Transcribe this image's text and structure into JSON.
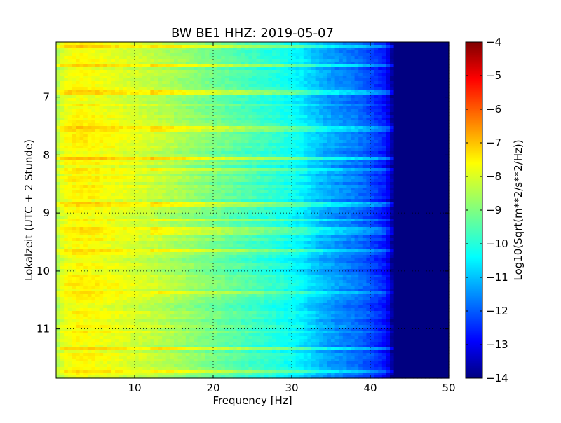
{
  "chart_data": {
    "type": "heatmap",
    "title": "BW BE1 HHZ: 2019-05-07",
    "xlabel": "Frequency [Hz]",
    "ylabel": "Lokalzeit (UTC + 2 Stunde)",
    "xlim": [
      0,
      50
    ],
    "ylim": [
      11.85,
      6.05
    ],
    "x_ticks": [
      10,
      20,
      30,
      40,
      50
    ],
    "x_tick_labels": [
      "10",
      "20",
      "30",
      "40",
      "50"
    ],
    "y_ticks": [
      7,
      8,
      9,
      10,
      11
    ],
    "y_tick_labels": [
      "7",
      "8",
      "9",
      "10",
      "11"
    ],
    "grid": true,
    "colormap": "jet",
    "colorbar": {
      "label": "Log10(Sqrt(m**2/s**2/Hz))",
      "range": [
        -14,
        -4
      ],
      "ticks": [
        -4,
        -5,
        -6,
        -7,
        -8,
        -9,
        -10,
        -11,
        -12,
        -13,
        -14
      ],
      "tick_labels": [
        "−4",
        "−5",
        "−6",
        "−7",
        "−8",
        "−9",
        "−10",
        "−11",
        "−12",
        "−13",
        "−14"
      ]
    },
    "spectrum_profile": {
      "frequency_hz": [
        0,
        1,
        3,
        5,
        8,
        12,
        16,
        20,
        24,
        28,
        31,
        33,
        35,
        38,
        40,
        42,
        43,
        45,
        50
      ],
      "log10_amplitude": [
        -8.6,
        -7.9,
        -7.7,
        -7.8,
        -8.0,
        -8.3,
        -8.7,
        -9.1,
        -9.5,
        -9.9,
        -10.3,
        -10.8,
        -11.2,
        -11.6,
        -12.0,
        -12.6,
        -14.0,
        -14.0,
        -14.0
      ]
    },
    "noise_bursts_hours": [
      6.12,
      6.45,
      6.92,
      7.55,
      8.05,
      8.25,
      8.85,
      9.13,
      9.28,
      9.35,
      9.65,
      10.38,
      11.35,
      11.72
    ]
  }
}
